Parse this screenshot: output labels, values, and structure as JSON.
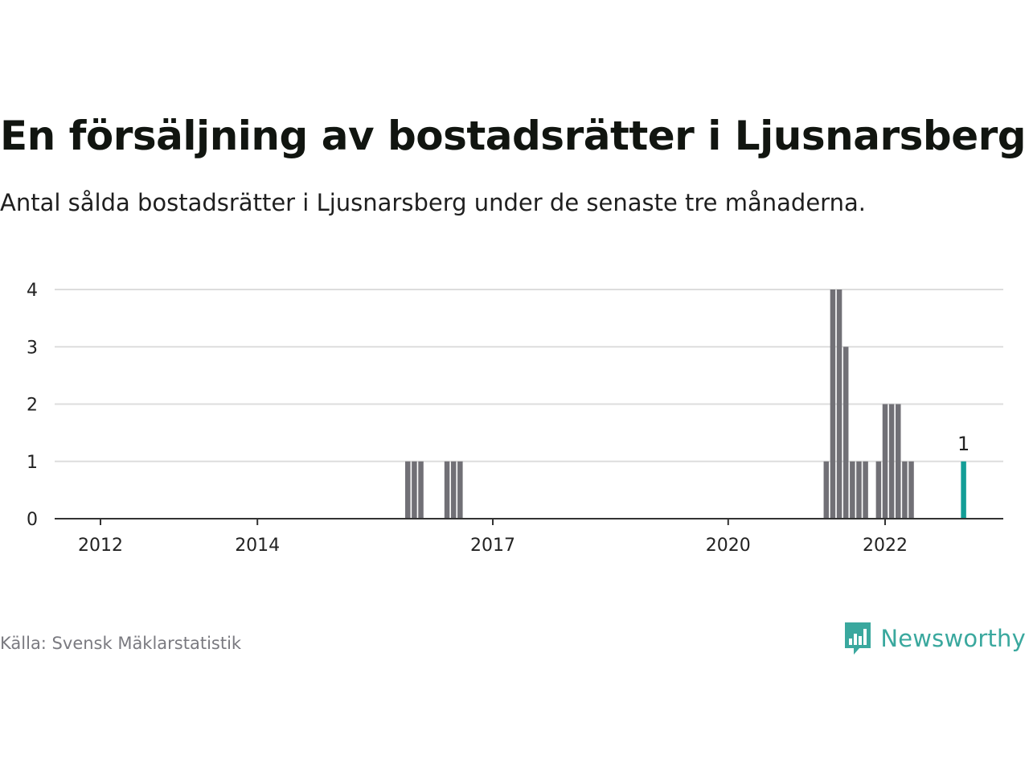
{
  "title": "En försäljning av bostadsrätter i Ljusnarsberg",
  "subtitle": "Antal sålda bostadsrätter i Ljusnarsberg under de senaste tre månaderna.",
  "source": "Källa: Svensk Mäklarstatistik",
  "brand": {
    "name": "Newsworthy",
    "icon": "newsworthy-logo-icon"
  },
  "colors": {
    "bar": "#717076",
    "highlight": "#139e97",
    "grid": "#dddddd",
    "axis": "#333333"
  },
  "chart_data": {
    "type": "bar",
    "title": "En försäljning av bostadsrätter i Ljusnarsberg",
    "xlabel": "",
    "ylabel": "",
    "ylim": [
      0,
      4
    ],
    "yticks": [
      0,
      1,
      2,
      3,
      4
    ],
    "xticks": [
      "2012",
      "2014",
      "2017",
      "2020",
      "2022"
    ],
    "grid": true,
    "series": [
      {
        "points": [
          {
            "date": "2015-12",
            "value": 1
          },
          {
            "date": "2016-01",
            "value": 1
          },
          {
            "date": "2016-02",
            "value": 1
          },
          {
            "date": "2016-06",
            "value": 1
          },
          {
            "date": "2016-07",
            "value": 1
          },
          {
            "date": "2016-08",
            "value": 1
          },
          {
            "date": "2021-04",
            "value": 1
          },
          {
            "date": "2021-05",
            "value": 4
          },
          {
            "date": "2021-06",
            "value": 4
          },
          {
            "date": "2021-07",
            "value": 3
          },
          {
            "date": "2021-08",
            "value": 1
          },
          {
            "date": "2021-09",
            "value": 1
          },
          {
            "date": "2021-10",
            "value": 1
          },
          {
            "date": "2021-12",
            "value": 1
          },
          {
            "date": "2022-01",
            "value": 2
          },
          {
            "date": "2022-02",
            "value": 2
          },
          {
            "date": "2022-03",
            "value": 2
          },
          {
            "date": "2022-04",
            "value": 1
          },
          {
            "date": "2022-05",
            "value": 1
          },
          {
            "date": "2023-01",
            "value": 1,
            "highlight": true,
            "label": "1"
          }
        ]
      }
    ]
  }
}
